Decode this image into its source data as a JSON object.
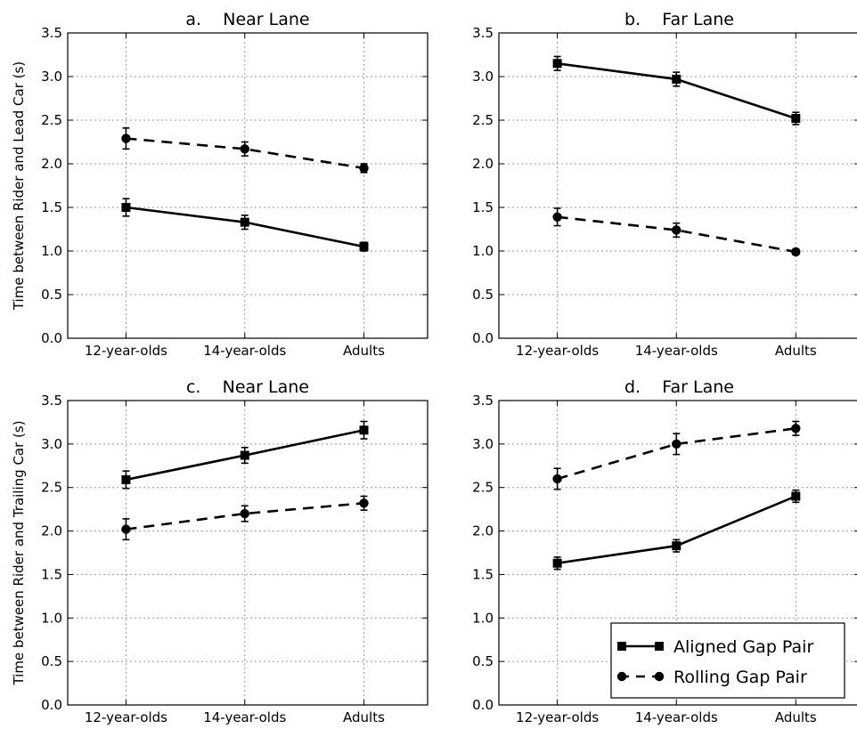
{
  "chart_data": [
    {
      "type": "line",
      "title": "a.    Near Lane",
      "ylabel": "Time between Rider and Lead Car (s)",
      "categories": [
        "12-year-olds",
        "14-year-olds",
        "Adults"
      ],
      "ylim": [
        0,
        3.5
      ],
      "yticks": [
        "0.0",
        "0.5",
        "1.0",
        "1.5",
        "2.0",
        "2.5",
        "3.0",
        "3.5"
      ],
      "grid": true,
      "series": [
        {
          "key": "aligned",
          "values": [
            1.5,
            1.33,
            1.05
          ],
          "errors": [
            0.1,
            0.08,
            0.05
          ]
        },
        {
          "key": "rolling",
          "values": [
            2.29,
            2.17,
            1.95
          ],
          "errors": [
            0.12,
            0.08,
            0.05
          ]
        }
      ]
    },
    {
      "type": "line",
      "title": "b.    Far Lane",
      "ylabel": "",
      "categories": [
        "12-year-olds",
        "14-year-olds",
        "Adults"
      ],
      "ylim": [
        0,
        3.5
      ],
      "yticks": [
        "0.0",
        "0.5",
        "1.0",
        "1.5",
        "2.0",
        "2.5",
        "3.0",
        "3.5"
      ],
      "grid": true,
      "series": [
        {
          "key": "aligned",
          "values": [
            3.15,
            2.97,
            2.52
          ],
          "errors": [
            0.08,
            0.08,
            0.07
          ]
        },
        {
          "key": "rolling",
          "values": [
            1.39,
            1.24,
            0.99
          ],
          "errors": [
            0.1,
            0.08,
            0.03
          ]
        }
      ]
    },
    {
      "type": "line",
      "title": "c.    Near Lane",
      "ylabel": "Time between Rider and Trailing Car (s)",
      "categories": [
        "12-year-olds",
        "14-year-olds",
        "Adults"
      ],
      "ylim": [
        0,
        3.5
      ],
      "yticks": [
        "0.0",
        "0.5",
        "1.0",
        "1.5",
        "2.0",
        "2.5",
        "3.0",
        "3.5"
      ],
      "grid": true,
      "series": [
        {
          "key": "aligned",
          "values": [
            2.59,
            2.87,
            3.16
          ],
          "errors": [
            0.1,
            0.09,
            0.1
          ]
        },
        {
          "key": "rolling",
          "values": [
            2.02,
            2.2,
            2.32
          ],
          "errors": [
            0.12,
            0.09,
            0.08
          ]
        }
      ]
    },
    {
      "type": "line",
      "title": "d.    Far Lane",
      "ylabel": "",
      "categories": [
        "12-year-olds",
        "14-year-olds",
        "Adults"
      ],
      "ylim": [
        0,
        3.5
      ],
      "yticks": [
        "0.0",
        "0.5",
        "1.0",
        "1.5",
        "2.0",
        "2.5",
        "3.0",
        "3.5"
      ],
      "grid": true,
      "series": [
        {
          "key": "aligned",
          "values": [
            1.63,
            1.83,
            2.4
          ],
          "errors": [
            0.07,
            0.07,
            0.07
          ]
        },
        {
          "key": "rolling",
          "values": [
            2.6,
            3.0,
            3.18
          ],
          "errors": [
            0.12,
            0.12,
            0.08
          ]
        }
      ]
    }
  ],
  "legend": {
    "placement": "bottom-right of panel d",
    "entries": [
      {
        "key": "aligned",
        "label": "Aligned Gap Pair",
        "line": "solid",
        "marker": "square"
      },
      {
        "key": "rolling",
        "label": "Rolling Gap Pair",
        "line": "dashed",
        "marker": "circle"
      }
    ]
  }
}
